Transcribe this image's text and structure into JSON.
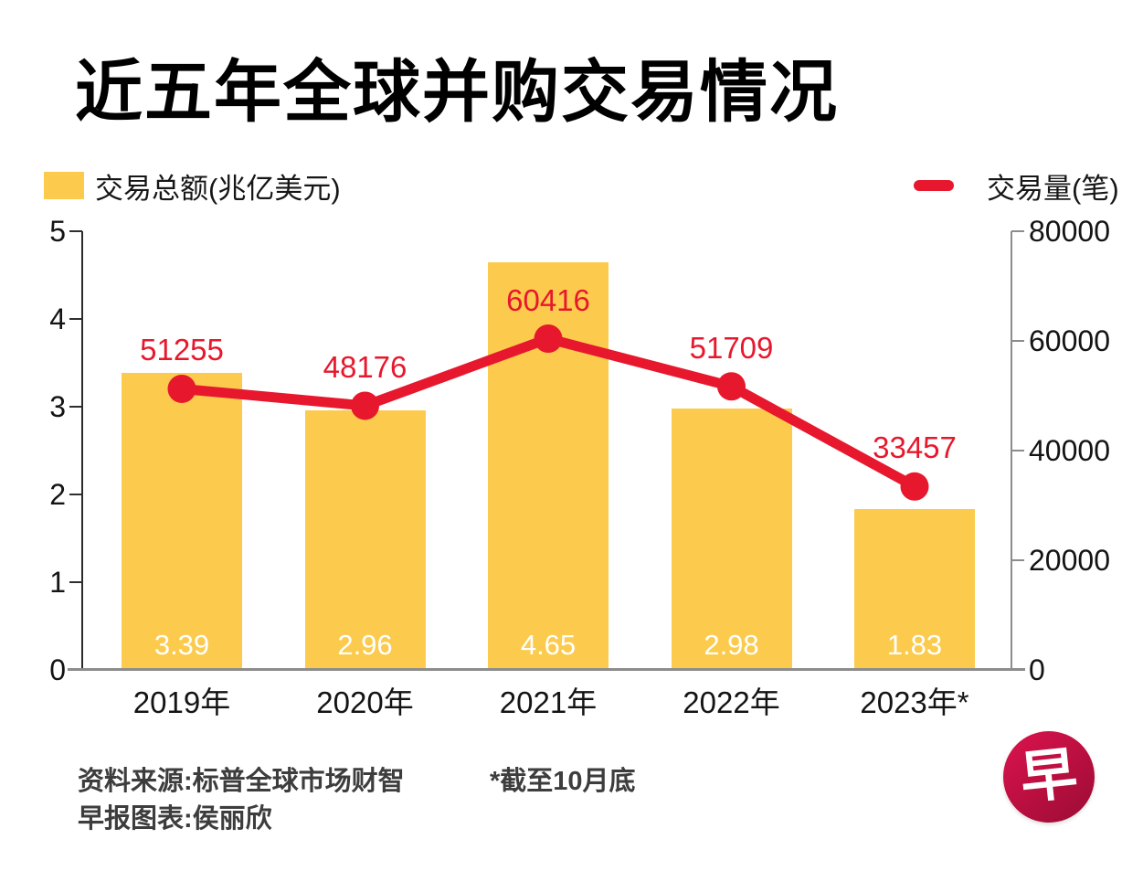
{
  "title": "近五年全球并购交易情况",
  "legend": {
    "bar_label": "交易总额(兆亿美元)",
    "line_label": "交易量(笔)"
  },
  "colors": {
    "bar": "#FCCB4D",
    "line": "#E7182D",
    "axis_dark": "#2b2b2b",
    "axis_gray": "#8c8c8c",
    "logo": "#C01244",
    "title_text": "#000000",
    "footer_text": "#3d3d3d"
  },
  "chart_data": {
    "type": "bar+line combo",
    "categories": [
      "2019年",
      "2020年",
      "2021年",
      "2022年",
      "2023年*"
    ],
    "series": [
      {
        "name": "交易总额(兆亿美元)",
        "type": "bar",
        "axis": "left",
        "values": [
          3.39,
          2.96,
          4.65,
          2.98,
          1.83
        ],
        "value_labels": [
          "3.39",
          "2.96",
          "4.65",
          "2.98",
          "1.83"
        ],
        "color": "#FCCB4D"
      },
      {
        "name": "交易量(笔)",
        "type": "line",
        "axis": "right",
        "values": [
          51255,
          48176,
          60416,
          51709,
          33457
        ],
        "value_labels": [
          "51255",
          "48176",
          "60416",
          "51709",
          "33457"
        ],
        "color": "#E7182D"
      }
    ],
    "left_axis": {
      "range": [
        0,
        5
      ],
      "ticks": [
        0,
        1,
        2,
        3,
        4,
        5
      ]
    },
    "right_axis": {
      "range": [
        0,
        80000
      ],
      "ticks": [
        0,
        20000,
        40000,
        60000,
        80000
      ]
    },
    "grid": false,
    "legend_position": "top"
  },
  "footer": {
    "source": "资料来源:标普全球市场财智",
    "credit": "早报图表:侯丽欣",
    "note": "*截至10月底",
    "logo_char": "早"
  }
}
